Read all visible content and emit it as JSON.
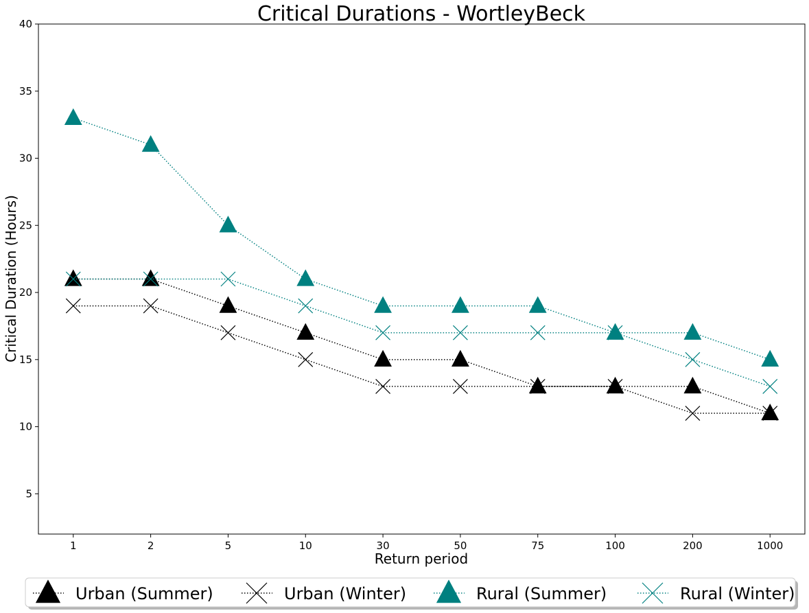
{
  "chart_data": {
    "type": "line",
    "title": "Critical Durations - WortleyBeck",
    "xlabel": "Return period",
    "ylabel": "Critical Duration (Hours)",
    "categories": [
      "1",
      "2",
      "5",
      "10",
      "30",
      "50",
      "75",
      "100",
      "200",
      "1000"
    ],
    "ylim": [
      2,
      40
    ],
    "yticks": [
      5,
      10,
      15,
      20,
      25,
      30,
      35,
      40
    ],
    "grid": false,
    "legend_position": "bottom-center",
    "series": [
      {
        "name": "Urban (Summer)",
        "marker": "triangle",
        "color": "#000000",
        "line_style": "dotted",
        "values": [
          21,
          21,
          19,
          17,
          15,
          15,
          13,
          13,
          13,
          11
        ]
      },
      {
        "name": "Urban (Winter)",
        "marker": "x",
        "color": "#000000",
        "line_style": "dotted",
        "values": [
          19,
          19,
          17,
          15,
          13,
          13,
          13,
          13,
          11,
          11
        ]
      },
      {
        "name": "Rural (Summer)",
        "marker": "triangle",
        "color": "#008080",
        "line_style": "dotted",
        "values": [
          33,
          31,
          25,
          21,
          19,
          19,
          19,
          17,
          17,
          15
        ]
      },
      {
        "name": "Rural (Winter)",
        "marker": "x",
        "color": "#008080",
        "line_style": "dotted",
        "values": [
          21,
          21,
          21,
          19,
          17,
          17,
          17,
          17,
          15,
          13
        ]
      }
    ]
  }
}
